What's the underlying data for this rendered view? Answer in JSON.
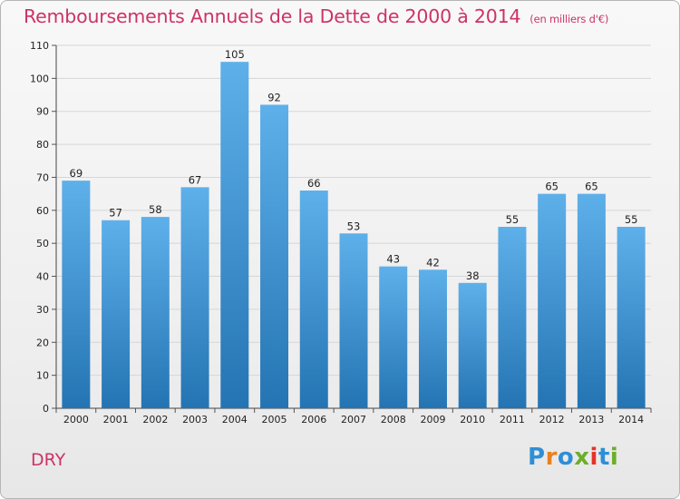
{
  "header": {
    "title": "Remboursements Annuels de la Dette de 2000 à 2014",
    "unit": "(en milliers d'€)"
  },
  "footer": {
    "city": "DRY",
    "brand": "Proxiti"
  },
  "colors": {
    "title": "#cc3366",
    "bar_top": "#5eb0ea",
    "bar_bottom": "#2474b3",
    "brand_letters": [
      "#2e8fd6",
      "#e8811e",
      "#2e8fd6",
      "#6cae2b",
      "#e53329",
      "#2e8fd6",
      "#6cae2b"
    ]
  },
  "chart_data": {
    "type": "bar",
    "title": "Remboursements Annuels de la Dette de 2000 à 2014",
    "categories": [
      "2000",
      "2001",
      "2002",
      "2003",
      "2004",
      "2005",
      "2006",
      "2007",
      "2008",
      "2009",
      "2010",
      "2011",
      "2012",
      "2013",
      "2014"
    ],
    "values": [
      69,
      57,
      58,
      67,
      105,
      92,
      66,
      53,
      43,
      42,
      38,
      55,
      65,
      65,
      55
    ],
    "ylim": [
      0,
      110
    ],
    "yticks": [
      0,
      10,
      20,
      30,
      40,
      50,
      60,
      70,
      80,
      90,
      100,
      110
    ],
    "xlabel": "",
    "ylabel": "",
    "grid": true,
    "data_labels": true
  }
}
